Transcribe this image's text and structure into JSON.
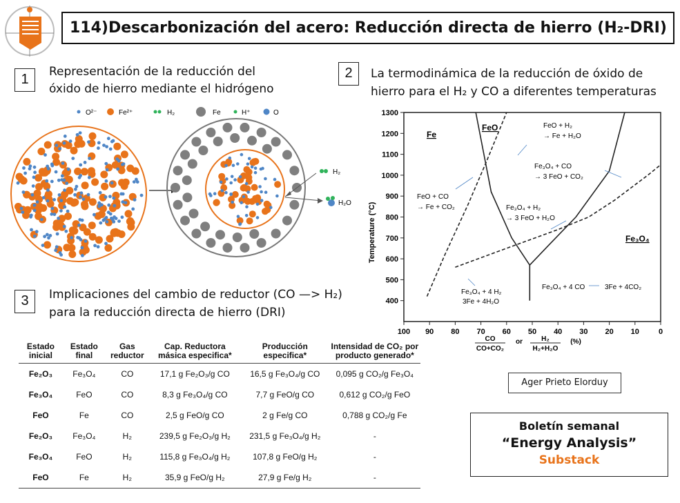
{
  "title": "114)Descarbonización del acero: Reducción directa de hierro (H₂-DRI)",
  "section1": {
    "number": "1",
    "text_line1": "Representación de la reducción del",
    "text_line2": "óxido de hierro mediante el hidrógeno",
    "legend": {
      "o2": "O²⁻",
      "fe2": "Fe²⁺",
      "h2": "H₂",
      "fe": "Fe",
      "hplus": "H⁺",
      "o": "O"
    },
    "labels": {
      "h2": "H₂",
      "h2o": "H₂O"
    }
  },
  "section2": {
    "number": "2",
    "text_line1": "La termodinámica de la reducción de óxido de",
    "text_line2": "hierro para el H₂ y CO a diferentes temperaturas"
  },
  "section3": {
    "number": "3",
    "text_line1": "Implicaciones del cambio de reductor (CO —> H₂)",
    "text_line2": "para la reducción directa de hierro (DRI)"
  },
  "table": {
    "headers": [
      "Estado inicial",
      "Estado final",
      "Gas reductor",
      "Cap. Reductora másica especifica*",
      "Producción especifica*",
      "Intensidad de CO₂ por producto generado*"
    ],
    "rows": [
      [
        "Fe₂O₃",
        "Fe₃O₄",
        "CO",
        "17,1 g Fe₂O₃/g CO",
        "16,5 g Fe₃O₄/g CO",
        "0,095 g CO₂/g Fe₃O₄"
      ],
      [
        "Fe₃O₄",
        "FeO",
        "CO",
        "8,3 g Fe₃O₄/g CO",
        "7,7 g FeO/g CO",
        "0,612 g CO₂/g FeO"
      ],
      [
        "FeO",
        "Fe",
        "CO",
        "2,5 g FeO/g CO",
        "2 g Fe/g CO",
        "0,788 g CO₂/g Fe"
      ],
      [
        "Fe₂O₃",
        "Fe₃O₄",
        "H₂",
        "239,5 g Fe₂O₃/g H₂",
        "231,5 g Fe₃O₄/g H₂",
        "-"
      ],
      [
        "Fe₃O₄",
        "FeO",
        "H₂",
        "115,8 g Fe₃O₄/g H₂",
        "107,8 g FeO/g H₂",
        "-"
      ],
      [
        "FeO",
        "Fe",
        "H₂",
        "35,9 g FeO/g H₂",
        "27,9 g Fe/g H₂",
        "-"
      ]
    ]
  },
  "chart_data": {
    "type": "line",
    "ylabel": "Temperature (°C)",
    "xlabel_num1": "CO",
    "xlabel_den1": "CO+CO₂",
    "xlabel_or": "or",
    "xlabel_num2": "H₂",
    "xlabel_den2": "H₂+H₂O",
    "xlabel_unit": "(%)",
    "xlim": [
      100,
      0
    ],
    "ylim": [
      300,
      1300
    ],
    "x_ticks": [
      100,
      90,
      80,
      70,
      60,
      50,
      40,
      30,
      20,
      10,
      0
    ],
    "y_ticks": [
      400,
      500,
      600,
      700,
      800,
      900,
      1000,
      1100,
      1200,
      1300
    ],
    "regions": {
      "fe": "Fe",
      "feo": "FeO",
      "fe3o4": "Fe₃O₄"
    },
    "series": [
      {
        "style": "solid",
        "points": [
          [
            72,
            1300
          ],
          [
            66,
            920
          ],
          [
            58,
            700
          ],
          [
            51,
            570
          ]
        ]
      },
      {
        "style": "solid",
        "points": [
          [
            51,
            570
          ],
          [
            44,
            660
          ],
          [
            33,
            800
          ],
          [
            20,
            1020
          ],
          [
            14,
            1300
          ]
        ]
      },
      {
        "style": "solid",
        "points": [
          [
            51,
            570
          ],
          [
            51,
            400
          ]
        ]
      },
      {
        "style": "dashed",
        "points": [
          [
            91,
            420
          ],
          [
            84,
            620
          ],
          [
            75,
            860
          ],
          [
            68,
            1060
          ],
          [
            60,
            1300
          ]
        ]
      },
      {
        "style": "dashed",
        "points": [
          [
            80,
            560
          ],
          [
            60,
            650
          ],
          [
            40,
            740
          ],
          [
            28,
            800
          ],
          [
            18,
            880
          ],
          [
            5,
            1000
          ],
          [
            0,
            1050
          ]
        ]
      }
    ],
    "annotations": {
      "feo_co": [
        "FeO + CO",
        "→ Fe + CO₂"
      ],
      "feo_h2": [
        "FeO + H₂",
        "→ Fe + H₂O"
      ],
      "fe3o4_co": [
        "Fe₃O₄ + CO",
        "→ 3 FeO + CO₂"
      ],
      "fe3o4_h2": [
        "Fe₃O₄ + H₂",
        "→ 3 FeO + H₂O"
      ],
      "fe3o4_4h2": [
        "Fe₃O₄ + 4 H₂",
        "3Fe + 4H₂O"
      ],
      "fe3o4_4co": [
        "Fe₃O₄ + 4 CO",
        "3Fe + 4CO₂"
      ]
    }
  },
  "author": "Ager Prieto Elorduy",
  "bulletin": {
    "line1": "Boletín semanal",
    "line2": "“Energy Analysis”",
    "line3": "Substack"
  },
  "colors": {
    "orange": "#e8731a",
    "blue": "#4f86c6",
    "green": "#2fb35a",
    "gray": "#7f7f7f"
  }
}
